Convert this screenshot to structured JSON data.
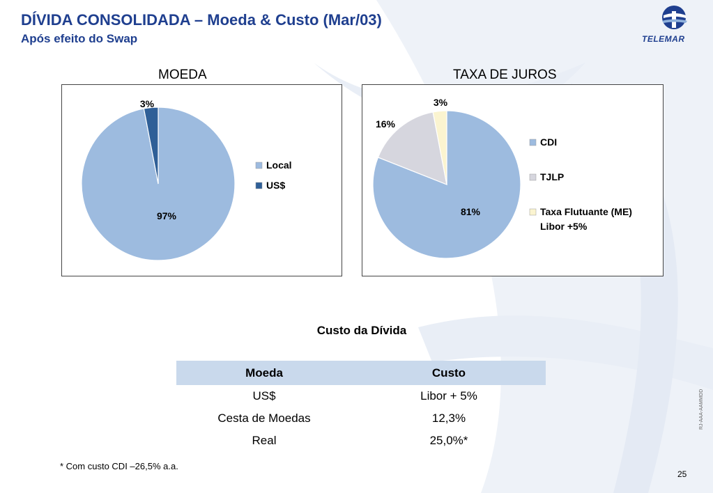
{
  "header": {
    "title": "DÍVIDA CONSOLIDADA – Moeda & Custo (Mar/03)",
    "subtitle": "Após efeito do Swap",
    "logo_text": "TELEMAR"
  },
  "chart_data": [
    {
      "type": "pie",
      "title": "MOEDA",
      "categories": [
        "Local",
        "US$"
      ],
      "values": [
        97,
        3
      ],
      "labels": [
        "97%",
        "3%"
      ],
      "colors": [
        "#9dbbdf",
        "#2f5f97"
      ],
      "legend_position": "right"
    },
    {
      "type": "pie",
      "title": "TAXA DE JUROS",
      "categories": [
        "CDI",
        "TJLP",
        "Taxa Flutuante (ME) Libor +5%"
      ],
      "legend_lines": [
        [
          "CDI"
        ],
        [
          "TJLP"
        ],
        [
          "Taxa Flutuante (ME)",
          "Libor +5%"
        ]
      ],
      "values": [
        81,
        16,
        3
      ],
      "labels": [
        "81%",
        "16%",
        "3%"
      ],
      "colors": [
        "#9dbbdf",
        "#d6d6de",
        "#fbf4d0"
      ],
      "legend_position": "right"
    }
  ],
  "cost_table": {
    "title": "Custo da Dívida",
    "headers": [
      "Moeda",
      "Custo"
    ],
    "rows": [
      [
        "US$",
        "Libor + 5%"
      ],
      [
        "Cesta de Moedas",
        "12,3%"
      ],
      [
        "Real",
        "25,0%*"
      ]
    ],
    "header_color": "#c9d9ec"
  },
  "footnote": "* Com custo CDI –26,5% a.a.",
  "page_number": "25",
  "side_code": "RJ-AAA-AAMMDD"
}
